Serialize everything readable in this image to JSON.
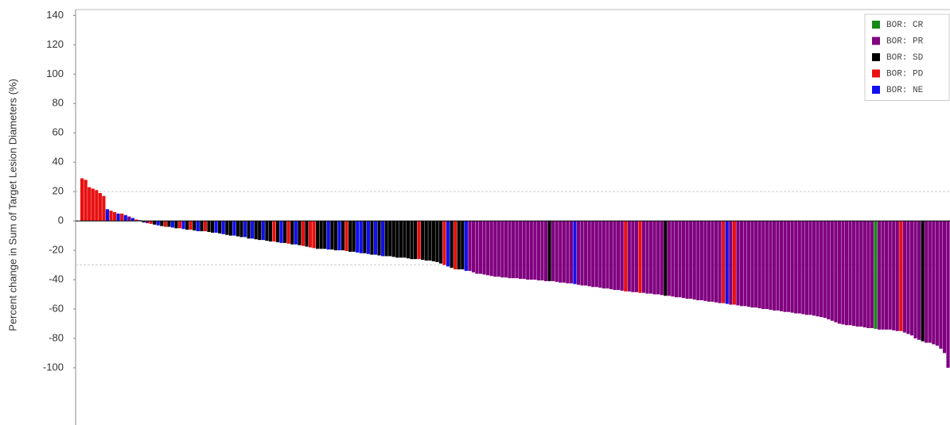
{
  "chart_data": {
    "type": "waterfall",
    "y_label": "Percent change in Sum of Target Lesion Diameters (%)",
    "ylim": [
      -139,
      144
    ],
    "yticks": [
      -100,
      -80,
      -60,
      -40,
      -20,
      0,
      20,
      40,
      60,
      80,
      100,
      120,
      140
    ],
    "ref_lines": [
      20,
      -30
    ],
    "legend_position": "top-right",
    "series": [
      {
        "name": "BOR: CR",
        "color": "#168a16"
      },
      {
        "name": "BOR: PR",
        "color": "#800080"
      },
      {
        "name": "BOR: SD",
        "color": "#000000"
      },
      {
        "name": "BOR: PD",
        "color": "#e81010"
      },
      {
        "name": "BOR: NE",
        "color": "#1010f0"
      }
    ],
    "values": [
      29,
      28,
      23,
      22,
      21,
      19,
      17,
      8,
      7,
      6,
      5,
      5,
      4,
      3,
      2,
      1,
      0.5,
      -1,
      -1.5,
      -2,
      -2.5,
      -3,
      -3.5,
      -4,
      -4,
      -4.5,
      -5,
      -5,
      -5.5,
      -6,
      -6,
      -6.5,
      -7,
      -7,
      -7,
      -7.5,
      -8,
      -8,
      -8.5,
      -9,
      -9.5,
      -10,
      -10,
      -10.5,
      -11,
      -11,
      -12,
      -12,
      -12.5,
      -13,
      -13,
      -13.5,
      -14,
      -14,
      -14.5,
      -15,
      -15,
      -15.5,
      -16,
      -16,
      -16.5,
      -17,
      -17.5,
      -18,
      -18.5,
      -19,
      -19,
      -19,
      -19.5,
      -19.5,
      -20,
      -20,
      -20,
      -20.5,
      -21,
      -21,
      -21.5,
      -22,
      -22,
      -22.5,
      -23,
      -23,
      -23.5,
      -24,
      -24,
      -24,
      -24.5,
      -25,
      -25,
      -25,
      -25.5,
      -26,
      -26,
      -26,
      -26.5,
      -27,
      -27,
      -27.5,
      -28,
      -29,
      -30,
      -31,
      -32,
      -33,
      -33,
      -33,
      -34,
      -34,
      -35,
      -36,
      -36,
      -36.5,
      -37,
      -37.5,
      -38,
      -38,
      -38.5,
      -38.5,
      -39,
      -39,
      -39,
      -39.5,
      -39.5,
      -40,
      -40,
      -40,
      -40.5,
      -40.5,
      -41,
      -41,
      -41,
      -41.5,
      -42,
      -42,
      -42.5,
      -42.5,
      -43,
      -43.5,
      -44,
      -44,
      -44.5,
      -45,
      -45,
      -45.5,
      -46,
      -46,
      -46.5,
      -47,
      -47,
      -47.5,
      -48,
      -48,
      -48.5,
      -48.5,
      -49,
      -49,
      -49.5,
      -49.5,
      -50,
      -50,
      -50.5,
      -51,
      -51,
      -51.5,
      -52,
      -52,
      -52.5,
      -53,
      -53,
      -53.5,
      -54,
      -54,
      -54.5,
      -55,
      -55,
      -55.5,
      -56,
      -56,
      -56.5,
      -57,
      -57,
      -57.5,
      -58,
      -58,
      -58.5,
      -59,
      -59,
      -59.5,
      -60,
      -60,
      -60.5,
      -61,
      -61,
      -61.5,
      -62,
      -62,
      -62.5,
      -63,
      -63,
      -63.5,
      -64,
      -64,
      -64.5,
      -65,
      -65.5,
      -66,
      -67,
      -68,
      -69,
      -70,
      -70.5,
      -71,
      -71,
      -71.5,
      -72,
      -72,
      -72.5,
      -73,
      -73,
      -73.5,
      -74,
      -74,
      -74,
      -74,
      -74.5,
      -75,
      -75,
      -76,
      -77,
      -78,
      -80,
      -81,
      -82,
      -83,
      -83,
      -84,
      -85,
      -87,
      -90,
      -100
    ],
    "bar_series": [
      3,
      3,
      3,
      3,
      3,
      3,
      3,
      4,
      3,
      3,
      4,
      3,
      4,
      1,
      4,
      3,
      4,
      2,
      1,
      3,
      2,
      4,
      2,
      3,
      2,
      4,
      2,
      3,
      4,
      2,
      3,
      2,
      4,
      2,
      3,
      2,
      2,
      4,
      2,
      4,
      2,
      2,
      4,
      2,
      2,
      4,
      2,
      4,
      2,
      2,
      4,
      2,
      2,
      3,
      2,
      4,
      2,
      3,
      2,
      4,
      2,
      3,
      2,
      3,
      3,
      2,
      2,
      2,
      4,
      2,
      2,
      4,
      2,
      3,
      2,
      2,
      4,
      4,
      2,
      4,
      2,
      4,
      2,
      4,
      2,
      2,
      2,
      2,
      2,
      2,
      2,
      2,
      2,
      3,
      2,
      2,
      2,
      2,
      2,
      2,
      3,
      4,
      2,
      3,
      2,
      2,
      4,
      1,
      1,
      1,
      1,
      1,
      1,
      1,
      1,
      1,
      1,
      1,
      1,
      1,
      1,
      1,
      1,
      1,
      1,
      1,
      1,
      1,
      1,
      2,
      1,
      1,
      1,
      1,
      1,
      1,
      4,
      1,
      1,
      1,
      1,
      1,
      1,
      1,
      1,
      1,
      1,
      1,
      1,
      1,
      3,
      1,
      1,
      1,
      3,
      1,
      1,
      1,
      1,
      1,
      1,
      2,
      1,
      1,
      1,
      1,
      1,
      1,
      1,
      1,
      1,
      1,
      1,
      1,
      1,
      1,
      1,
      3,
      4,
      1,
      3,
      1,
      1,
      1,
      1,
      1,
      1,
      1,
      1,
      1,
      1,
      1,
      1,
      1,
      1,
      1,
      1,
      1,
      1,
      1,
      1,
      1,
      1,
      1,
      1,
      1,
      1,
      1,
      1,
      1,
      1,
      1,
      1,
      1,
      1,
      1,
      1,
      1,
      1,
      0,
      1,
      1,
      1,
      1,
      1,
      1,
      3,
      1,
      1,
      1,
      1,
      1,
      2,
      1,
      1,
      1,
      1,
      1,
      1,
      1
    ]
  }
}
